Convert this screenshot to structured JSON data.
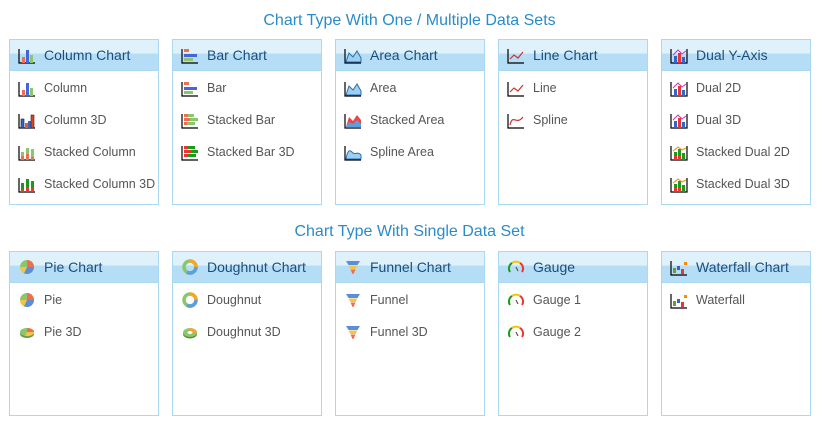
{
  "sections": [
    {
      "title": "Chart Type With One / Multiple Data Sets",
      "panels": [
        {
          "title": "Column Chart",
          "icon": "column",
          "items": [
            {
              "label": "Column",
              "icon": "column"
            },
            {
              "label": "Column 3D",
              "icon": "column3d"
            },
            {
              "label": "Stacked Column",
              "icon": "stackcol"
            },
            {
              "label": "Stacked Column 3D",
              "icon": "stackcol3d"
            }
          ]
        },
        {
          "title": "Bar Chart",
          "icon": "bar",
          "items": [
            {
              "label": "Bar",
              "icon": "bar"
            },
            {
              "label": "Stacked Bar",
              "icon": "stackbar"
            },
            {
              "label": "Stacked Bar 3D",
              "icon": "stackbar3d"
            }
          ]
        },
        {
          "title": "Area Chart",
          "icon": "area",
          "items": [
            {
              "label": "Area",
              "icon": "area"
            },
            {
              "label": "Stacked Area",
              "icon": "stackarea"
            },
            {
              "label": "Spline Area",
              "icon": "splinearea"
            }
          ]
        },
        {
          "title": "Line Chart",
          "icon": "line",
          "items": [
            {
              "label": "Line",
              "icon": "line"
            },
            {
              "label": "Spline",
              "icon": "spline"
            }
          ]
        },
        {
          "title": "Dual Y-Axis",
          "icon": "dual",
          "items": [
            {
              "label": "Dual 2D",
              "icon": "dual"
            },
            {
              "label": "Dual 3D",
              "icon": "dual"
            },
            {
              "label": "Stacked Dual 2D",
              "icon": "stackdual"
            },
            {
              "label": "Stacked Dual 3D",
              "icon": "stackdual"
            }
          ]
        }
      ]
    },
    {
      "title": "Chart Type With Single Data Set",
      "panels": [
        {
          "title": "Pie Chart",
          "icon": "pie",
          "items": [
            {
              "label": "Pie",
              "icon": "pie"
            },
            {
              "label": "Pie 3D",
              "icon": "pie3d"
            }
          ]
        },
        {
          "title": "Doughnut Chart",
          "icon": "doughnut",
          "items": [
            {
              "label": "Doughnut",
              "icon": "doughnut"
            },
            {
              "label": "Doughnut 3D",
              "icon": "doughnut3d"
            }
          ]
        },
        {
          "title": "Funnel Chart",
          "icon": "funnel",
          "items": [
            {
              "label": "Funnel",
              "icon": "funnel"
            },
            {
              "label": "Funnel 3D",
              "icon": "funnel"
            }
          ]
        },
        {
          "title": "Gauge",
          "icon": "gauge",
          "items": [
            {
              "label": "Gauge 1",
              "icon": "gauge"
            },
            {
              "label": "Gauge 2",
              "icon": "gauge"
            }
          ]
        },
        {
          "title": "Waterfall Chart",
          "icon": "waterfall",
          "items": [
            {
              "label": "Waterfall",
              "icon": "waterfall"
            }
          ]
        }
      ]
    }
  ]
}
